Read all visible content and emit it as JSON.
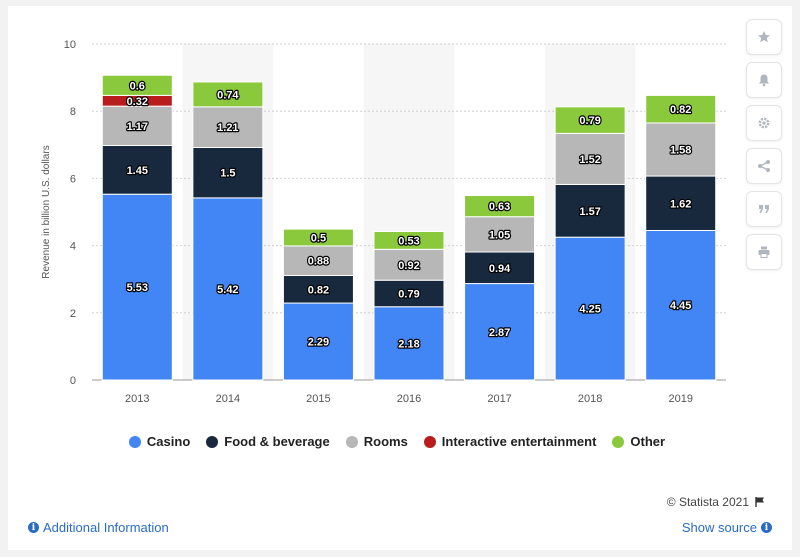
{
  "chart_data": {
    "type": "bar",
    "stacked": true,
    "categories": [
      "2013",
      "2014",
      "2015",
      "2016",
      "2017",
      "2018",
      "2019"
    ],
    "series": [
      {
        "name": "Casino",
        "color": "#4285f4",
        "values": [
          5.53,
          5.42,
          2.29,
          2.18,
          2.87,
          4.25,
          4.45
        ]
      },
      {
        "name": "Food & beverage",
        "color": "#18293e",
        "values": [
          1.45,
          1.5,
          0.82,
          0.79,
          0.94,
          1.57,
          1.62
        ]
      },
      {
        "name": "Rooms",
        "color": "#b7b7b7",
        "values": [
          1.17,
          1.21,
          0.88,
          0.92,
          1.05,
          1.52,
          1.58
        ]
      },
      {
        "name": "Interactive entertainment",
        "color": "#b91c1c",
        "values": [
          0.32,
          null,
          null,
          null,
          null,
          null,
          null
        ]
      },
      {
        "name": "Other",
        "color": "#8bc93c",
        "values": [
          0.6,
          0.74,
          0.5,
          0.53,
          0.63,
          0.79,
          0.82
        ]
      }
    ],
    "title": "",
    "xlabel": "",
    "ylabel": "Revenue in billion U.S. dollars",
    "ylim": [
      0,
      10
    ],
    "yticks": [
      0,
      2,
      4,
      6,
      8,
      10
    ],
    "grid": true,
    "legend_position": "bottom"
  },
  "toolbar": {
    "icons": [
      "star-icon",
      "bell-icon",
      "gear-icon",
      "share-icon",
      "quote-icon",
      "print-icon"
    ]
  },
  "footer": {
    "credits": "© Statista 2021",
    "additional_info": "Additional Information",
    "show_source": "Show source"
  }
}
